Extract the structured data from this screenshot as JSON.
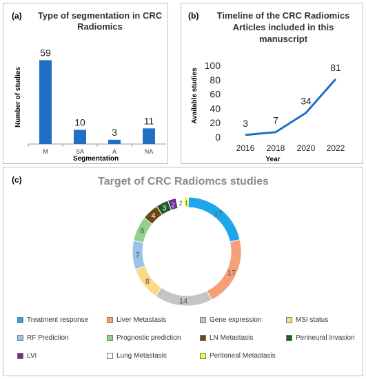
{
  "chart_data": [
    {
      "type": "bar",
      "panel_label": "(a)",
      "title": "Type of segmentation in CRC Radiomics",
      "xlabel": "Segmentation",
      "ylabel": "Number of studies",
      "categories": [
        "M",
        "SA",
        "A",
        "NA"
      ],
      "values": [
        59,
        10,
        3,
        11
      ],
      "ylim": [
        0,
        65
      ],
      "color": "#1f6fc5"
    },
    {
      "type": "line",
      "panel_label": "(b)",
      "title": "Timeline of the CRC Radiomics Articles included in this manuscript",
      "xlabel": "Year",
      "ylabel": "Available studies",
      "x": [
        2016,
        2018,
        2020,
        2022
      ],
      "values": [
        3,
        7,
        34,
        81
      ],
      "ylim": [
        0,
        100
      ],
      "yticks": [
        0,
        20,
        40,
        60,
        80,
        100
      ],
      "color": "#1f6fc5"
    },
    {
      "type": "pie",
      "panel_label": "(c)",
      "title": "Target of CRC Radiomcs studies",
      "slices": [
        {
          "label": "Treatment response",
          "value": 17,
          "color": "#1ca8e8"
        },
        {
          "label": "Liver Metastasis",
          "value": 17,
          "color": "#f6a07a"
        },
        {
          "label": "Gene expression",
          "value": 14,
          "color": "#c4c4c4"
        },
        {
          "label": "MSI status",
          "value": 8,
          "color": "#fdd886"
        },
        {
          "label": "RF Prediction",
          "value": 7,
          "color": "#9cc2ea"
        },
        {
          "label": "Prognostic prediction",
          "value": 6,
          "color": "#92d18b"
        },
        {
          "label": "LN Metastasis",
          "value": 4,
          "color": "#6b4a12"
        },
        {
          "label": "Perineural Invasion",
          "value": 3,
          "color": "#1e5e22"
        },
        {
          "label": "LVI",
          "value": 2,
          "color": "#6a2d91"
        },
        {
          "label": "Lung Metastasis",
          "value": 2,
          "color": "#ffffff"
        },
        {
          "label": "Peritoneal Metastasis",
          "value": 1,
          "color": "#f3ff3b"
        }
      ]
    }
  ]
}
